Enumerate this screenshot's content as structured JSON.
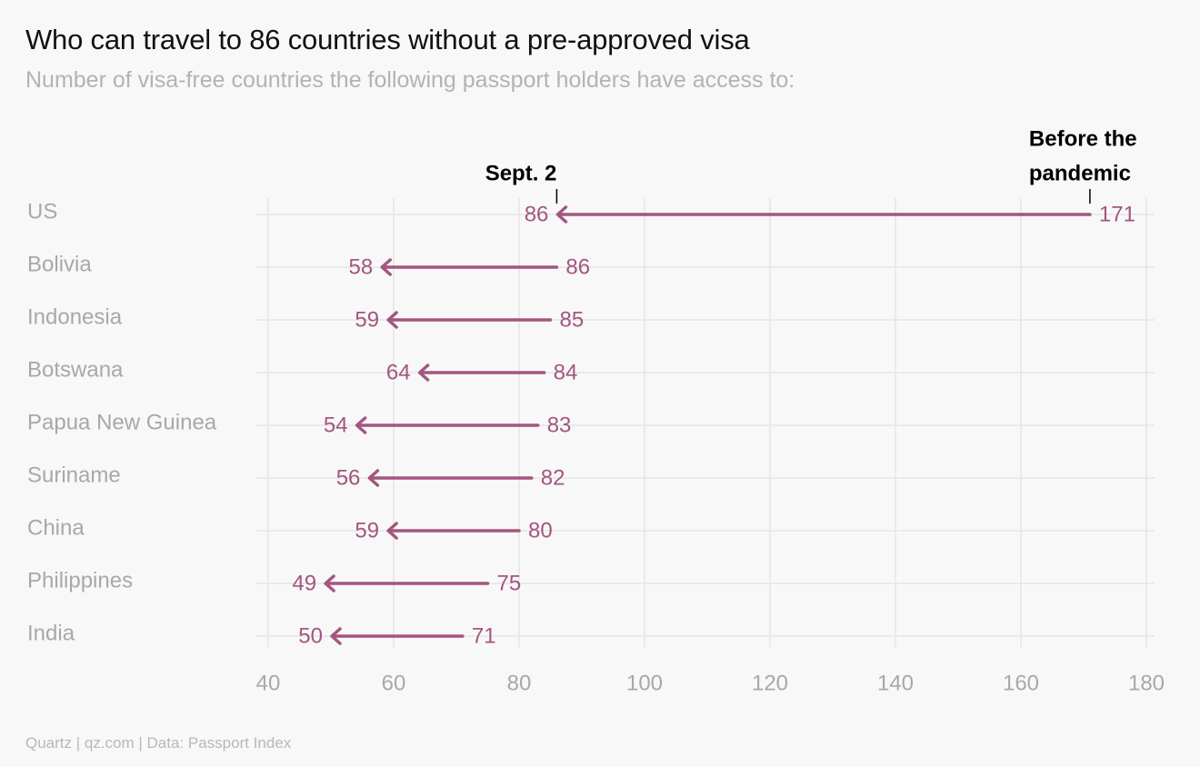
{
  "title": "Who can travel to 86 countries without a pre-approved visa",
  "subtitle": "Number of visa-free countries the following passport holders have access to:",
  "footer": "Quartz | qz.com | Data: Passport Index",
  "colors": {
    "series": "#a3567f",
    "grid": "#e6e6e6",
    "axis_text": "#a8a8a8"
  },
  "chart_data": {
    "type": "arrow-dot",
    "title": "Who can travel to 86 countries without a pre-approved visa",
    "subtitle": "Number of visa-free countries the following passport holders have access to:",
    "categories": [
      "US",
      "Bolivia",
      "Indonesia",
      "Botswana",
      "Papua New Guinea",
      "Suriname",
      "China",
      "Philippines",
      "India"
    ],
    "series": [
      {
        "name": "Before the pandemic",
        "values": [
          171,
          86,
          85,
          84,
          83,
          82,
          80,
          75,
          71
        ]
      },
      {
        "name": "Sept. 2",
        "values": [
          86,
          58,
          59,
          64,
          54,
          56,
          59,
          49,
          50
        ]
      }
    ],
    "xlim": [
      38,
      181
    ],
    "xticks": [
      40,
      60,
      80,
      100,
      120,
      140,
      160,
      180
    ],
    "grid": true,
    "annotations": [
      {
        "lines": [
          "Sept. 2"
        ],
        "x": 86
      },
      {
        "lines": [
          "Before the",
          "pandemic"
        ],
        "x": 171
      }
    ]
  }
}
